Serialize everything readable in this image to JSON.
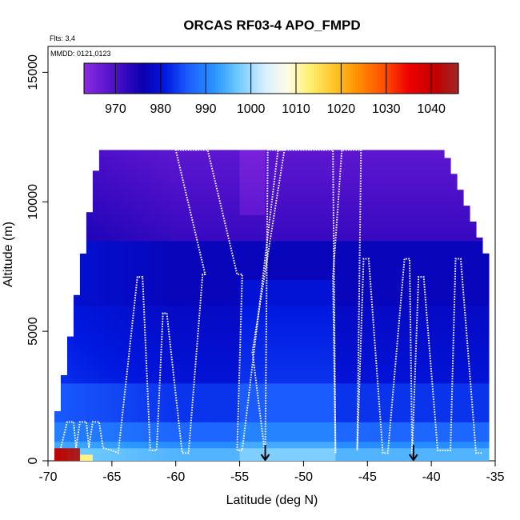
{
  "chart_data": {
    "type": "heatmap",
    "title": "ORCAS RF03-4 APO_FMPD",
    "xlabel": "Latitude (deg N)",
    "ylabel": "Altitude (m)",
    "xlim": [
      -70,
      -35
    ],
    "ylim": [
      0,
      16000
    ],
    "x_ticks": [
      -70,
      -65,
      -60,
      -55,
      -50,
      -45,
      -40,
      -35
    ],
    "x_tick_labels": [
      "-70",
      "-65",
      "-60",
      "-55",
      "-50",
      "-45",
      "-40",
      "-35"
    ],
    "y_ticks": [
      0,
      5000,
      10000,
      15000
    ],
    "y_tick_labels": [
      "0",
      "5000",
      "10000",
      "15000"
    ],
    "annotations": {
      "flights": "Flts: 3,4",
      "dates": "MMDD: 0121,0123"
    },
    "colorbar": {
      "range": [
        963,
        1046
      ],
      "ticks": [
        970,
        980,
        990,
        1000,
        1010,
        1020,
        1030,
        1040
      ],
      "tick_labels": [
        "970",
        "980",
        "990",
        "1000",
        "1010",
        "1020",
        "1030",
        "1040"
      ],
      "color_stops": [
        [
          963,
          "#8b2be2"
        ],
        [
          970,
          "#4b0fc8"
        ],
        [
          976,
          "#0a00b0"
        ],
        [
          981,
          "#0018e0"
        ],
        [
          986,
          "#1a5cff"
        ],
        [
          992,
          "#2a96ff"
        ],
        [
          997,
          "#6cc8ff"
        ],
        [
          1003,
          "#d6efff"
        ],
        [
          1008,
          "#fffbe8"
        ],
        [
          1013,
          "#fff070"
        ],
        [
          1019,
          "#ffc020"
        ],
        [
          1024,
          "#ff8c00"
        ],
        [
          1030,
          "#ff4a00"
        ],
        [
          1035,
          "#ee0000"
        ],
        [
          1041,
          "#c00000"
        ],
        [
          1046,
          "#a02828"
        ]
      ]
    },
    "arrows": [
      {
        "lat": -53,
        "alt": 0
      },
      {
        "lat": -41.4,
        "alt": 0
      }
    ],
    "flight_track": [
      [
        -69,
        500
      ],
      [
        -68.5,
        1500
      ],
      [
        -68,
        1500
      ],
      [
        -67.8,
        500
      ],
      [
        -67.5,
        1500
      ],
      [
        -67,
        1500
      ],
      [
        -66.8,
        500
      ],
      [
        -66.5,
        1500
      ],
      [
        -66,
        1500
      ],
      [
        -65.7,
        500
      ],
      [
        -65,
        400
      ],
      [
        -64.5,
        300
      ],
      [
        -63,
        7100
      ],
      [
        -62.6,
        7100
      ],
      [
        -62,
        400
      ],
      [
        -61.5,
        400
      ],
      [
        -61,
        5700
      ],
      [
        -60.7,
        5700
      ],
      [
        -59.5,
        300
      ],
      [
        -59,
        300
      ],
      [
        -57.9,
        7200
      ],
      [
        -57.7,
        7200
      ],
      [
        -60,
        12000
      ],
      [
        -57.5,
        12000
      ],
      [
        -55.2,
        7200
      ],
      [
        -54.8,
        7200
      ],
      [
        -55.2,
        400
      ],
      [
        -54.8,
        400
      ],
      [
        -52,
        12000
      ],
      [
        -51.5,
        12000
      ],
      [
        -54,
        4200
      ],
      [
        -53,
        200
      ],
      [
        -52.8,
        12000
      ],
      [
        -50,
        12000
      ],
      [
        -47.7,
        12000
      ],
      [
        -47.5,
        300
      ],
      [
        -47.7,
        7100
      ],
      [
        -47,
        12000
      ],
      [
        -45.5,
        12000
      ],
      [
        -45.8,
        400
      ],
      [
        -45.3,
        7800
      ],
      [
        -44.9,
        7800
      ],
      [
        -43.8,
        300
      ],
      [
        -43.4,
        300
      ],
      [
        -42.1,
        7800
      ],
      [
        -41.7,
        7800
      ],
      [
        -41.5,
        300
      ],
      [
        -41,
        7100
      ],
      [
        -40.6,
        7100
      ],
      [
        -39.5,
        400
      ],
      [
        -38.5,
        400
      ],
      [
        -38.1,
        7800
      ],
      [
        -37.7,
        7800
      ],
      [
        -36.5,
        300
      ],
      [
        -36,
        300
      ]
    ]
  }
}
